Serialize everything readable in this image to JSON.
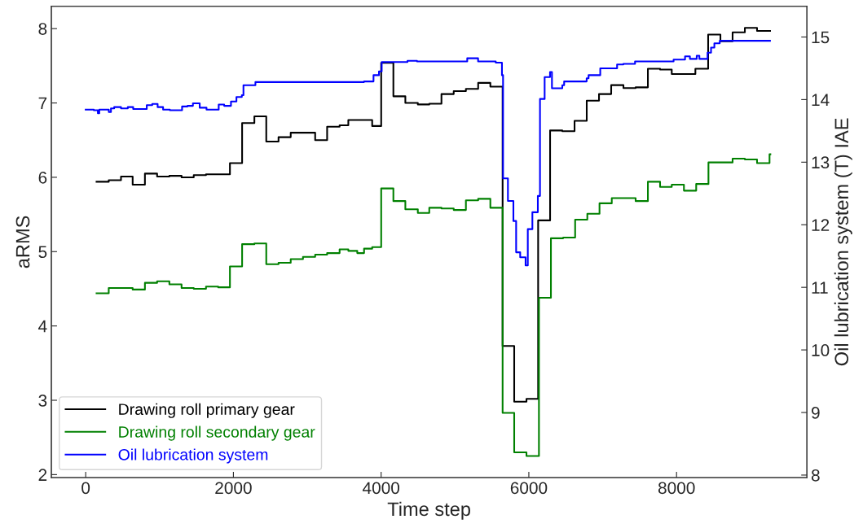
{
  "chart_data": {
    "type": "step",
    "xlabel": "Time step",
    "ylabel": "aRMS",
    "y2label": "Oil lubrication system (T) IAE",
    "xlim": [
      -465,
      9765
    ],
    "xticks": [
      0,
      2000,
      4000,
      6000,
      8000
    ],
    "ylim": [
      1.96,
      8.3
    ],
    "yticks": [
      2,
      3,
      4,
      5,
      6,
      7,
      8
    ],
    "y2lim": [
      7.96,
      15.49
    ],
    "y2ticks": [
      8,
      9,
      10,
      11,
      12,
      13,
      14,
      15
    ],
    "legend": "lower left",
    "grid": false,
    "series": [
      {
        "name": "Drawing roll primary gear",
        "color": "#000000",
        "x": [
          147,
          312,
          478,
          636,
          802,
          967,
          1133,
          1298,
          1463,
          1629,
          1953,
          2118,
          2284,
          2445,
          2611,
          2776,
          3107,
          3269,
          3438,
          3556,
          3879,
          4001,
          4166,
          4328,
          4497,
          4652,
          4817,
          4983,
          5148,
          5314,
          5479,
          5645,
          5802,
          5968,
          6126,
          6288,
          6453,
          6619,
          6784,
          6950,
          7115,
          7281,
          7446,
          7612,
          7777,
          7935,
          8255,
          8428,
          8594,
          8759,
          8925,
          9090,
          9266
        ],
        "values": [
          5.94,
          5.96,
          6.01,
          5.9,
          6.05,
          6.01,
          6.02,
          6.0,
          6.03,
          6.04,
          6.19,
          6.73,
          6.82,
          6.48,
          6.54,
          6.6,
          6.5,
          6.68,
          6.7,
          6.77,
          6.69,
          7.54,
          7.09,
          7.0,
          6.98,
          6.99,
          7.12,
          7.16,
          7.19,
          7.27,
          7.22,
          3.73,
          2.98,
          3.02,
          5.42,
          6.63,
          6.62,
          6.76,
          7.03,
          7.12,
          7.24,
          7.2,
          7.21,
          7.46,
          7.45,
          7.39,
          7.46,
          7.92,
          7.83,
          7.95,
          8.01,
          7.97,
          7.97
        ]
      },
      {
        "name": "Drawing roll secondary gear",
        "color": "#008000",
        "x": [
          147,
          312,
          478,
          636,
          802,
          967,
          1133,
          1298,
          1463,
          1629,
          1794,
          1953,
          2118,
          2284,
          2445,
          2611,
          2776,
          2942,
          3107,
          3269,
          3438,
          3556,
          3677,
          3769,
          3879,
          4001,
          4166,
          4328,
          4497,
          4652,
          4817,
          4983,
          5148,
          5314,
          5479,
          5645,
          5802,
          5968,
          6137,
          6299,
          6465,
          6627,
          6792,
          6957,
          7123,
          7446,
          7612,
          7777,
          7935,
          8100,
          8266,
          8432,
          8759,
          8925,
          9090,
          9259,
          9270
        ],
        "values": [
          4.44,
          4.51,
          4.51,
          4.49,
          4.58,
          4.6,
          4.56,
          4.51,
          4.5,
          4.53,
          4.52,
          4.8,
          5.1,
          5.11,
          4.83,
          4.85,
          4.9,
          4.93,
          4.96,
          4.98,
          5.03,
          5.01,
          4.98,
          5.04,
          5.06,
          5.85,
          5.68,
          5.57,
          5.52,
          5.59,
          5.58,
          5.56,
          5.69,
          5.71,
          5.59,
          2.83,
          2.3,
          2.25,
          4.38,
          5.18,
          5.19,
          5.43,
          5.51,
          5.65,
          5.72,
          5.68,
          5.94,
          5.87,
          5.9,
          5.82,
          5.91,
          6.2,
          6.25,
          6.24,
          6.19,
          6.31,
          6.31
        ]
      },
      {
        "name": "Oil lubrication system",
        "color": "#0000ff",
        "axis": "y2",
        "x": [
          0,
          110,
          165,
          184,
          313,
          342,
          386,
          478,
          570,
          643,
          717,
          827,
          901,
          974,
          1048,
          1140,
          1305,
          1379,
          1452,
          1544,
          1636,
          1801,
          1875,
          1967,
          2041,
          2114,
          2136,
          2298,
          3769,
          3897,
          3971,
          4008,
          4357,
          4486,
          5166,
          5313,
          5478,
          5552,
          5636,
          5651,
          5717,
          5791,
          5828,
          5883,
          5956,
          5986,
          6048,
          6122,
          6151,
          6214,
          6287,
          6313,
          6453,
          6478,
          6783,
          6809,
          6967,
          7195,
          7280,
          7438,
          7960,
          8115,
          8181,
          8273,
          8309,
          8420,
          8467,
          8512,
          8585,
          9265
        ],
        "values": [
          13.84,
          13.83,
          13.78,
          13.84,
          13.8,
          13.86,
          13.88,
          13.86,
          13.88,
          13.85,
          13.85,
          13.91,
          13.93,
          13.88,
          13.84,
          13.83,
          13.89,
          13.9,
          13.94,
          13.87,
          13.84,
          13.92,
          13.9,
          13.97,
          14.04,
          14.07,
          14.23,
          14.28,
          14.29,
          14.39,
          14.45,
          14.6,
          14.62,
          14.61,
          14.66,
          14.61,
          14.61,
          14.59,
          14.39,
          12.74,
          12.38,
          12.06,
          11.56,
          11.48,
          11.35,
          11.93,
          12.2,
          12.46,
          14.01,
          14.36,
          14.44,
          14.18,
          14.23,
          14.29,
          14.34,
          14.39,
          14.5,
          14.56,
          14.57,
          14.61,
          14.64,
          14.69,
          14.65,
          14.7,
          14.65,
          14.75,
          14.83,
          14.9,
          14.94,
          14.94
        ]
      }
    ]
  }
}
